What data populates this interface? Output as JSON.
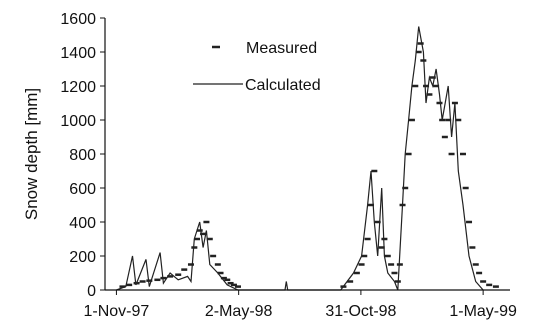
{
  "chart_data": {
    "type": "line",
    "title": "",
    "ylabel": "Snow depth [mm]",
    "xlabel": "",
    "x_range": [
      "1997-10-15",
      "1999-06-10"
    ],
    "ylim": [
      0,
      1600
    ],
    "y_ticks": [
      0,
      200,
      400,
      600,
      800,
      1000,
      1200,
      1400,
      1600
    ],
    "x_ticks": [
      {
        "date": "1997-11-01",
        "label": "1-Nov-97"
      },
      {
        "date": "1998-05-02",
        "label": "2-May-98"
      },
      {
        "date": "1998-10-31",
        "label": "31-Oct-98"
      },
      {
        "date": "1999-05-01",
        "label": "1-May-99"
      }
    ],
    "grid": false,
    "legend_position": "top-center",
    "series": [
      {
        "name": "Measured",
        "style": "markers",
        "color": "#222222",
        "points": [
          [
            "1997-11-10",
            20
          ],
          [
            "1997-11-20",
            30
          ],
          [
            "1997-12-01",
            40
          ],
          [
            "1997-12-10",
            50
          ],
          [
            "1997-12-20",
            55
          ],
          [
            "1998-01-01",
            60
          ],
          [
            "1998-01-10",
            70
          ],
          [
            "1998-01-20",
            80
          ],
          [
            "1998-02-01",
            90
          ],
          [
            "1998-02-10",
            120
          ],
          [
            "1998-02-20",
            150
          ],
          [
            "1998-02-25",
            250
          ],
          [
            "1998-03-01",
            300
          ],
          [
            "1998-03-05",
            350
          ],
          [
            "1998-03-10",
            330
          ],
          [
            "1998-03-15",
            400
          ],
          [
            "1998-03-20",
            300
          ],
          [
            "1998-03-25",
            200
          ],
          [
            "1998-04-01",
            150
          ],
          [
            "1998-04-05",
            100
          ],
          [
            "1998-04-10",
            70
          ],
          [
            "1998-04-15",
            60
          ],
          [
            "1998-04-20",
            40
          ],
          [
            "1998-04-25",
            30
          ],
          [
            "1998-05-01",
            20
          ],
          [
            "1998-10-05",
            20
          ],
          [
            "1998-10-15",
            50
          ],
          [
            "1998-10-25",
            100
          ],
          [
            "1998-11-01",
            150
          ],
          [
            "1998-11-05",
            200
          ],
          [
            "1998-11-10",
            300
          ],
          [
            "1998-11-15",
            500
          ],
          [
            "1998-11-20",
            700
          ],
          [
            "1998-11-25",
            400
          ],
          [
            "1998-12-01",
            250
          ],
          [
            "1998-12-05",
            300
          ],
          [
            "1998-12-10",
            200
          ],
          [
            "1998-12-15",
            150
          ],
          [
            "1998-12-20",
            100
          ],
          [
            "1998-12-25",
            50
          ],
          [
            "1998-12-28",
            150
          ],
          [
            "1999-01-01",
            500
          ],
          [
            "1999-01-05",
            600
          ],
          [
            "1999-01-10",
            800
          ],
          [
            "1999-01-15",
            1000
          ],
          [
            "1999-01-20",
            1200
          ],
          [
            "1999-01-25",
            1400
          ],
          [
            "1999-01-28",
            1450
          ],
          [
            "1999-02-01",
            1350
          ],
          [
            "1999-02-05",
            1200
          ],
          [
            "1999-02-10",
            1150
          ],
          [
            "1999-02-15",
            1250
          ],
          [
            "1999-02-20",
            1200
          ],
          [
            "1999-02-25",
            1100
          ],
          [
            "1999-03-01",
            1000
          ],
          [
            "1999-03-05",
            900
          ],
          [
            "1999-03-10",
            1000
          ],
          [
            "1999-03-15",
            800
          ],
          [
            "1999-03-20",
            1100
          ],
          [
            "1999-03-25",
            1000
          ],
          [
            "1999-04-01",
            800
          ],
          [
            "1999-04-05",
            600
          ],
          [
            "1999-04-10",
            400
          ],
          [
            "1999-04-15",
            250
          ],
          [
            "1999-04-20",
            150
          ],
          [
            "1999-04-25",
            100
          ],
          [
            "1999-05-01",
            50
          ],
          [
            "1999-05-10",
            30
          ],
          [
            "1999-05-20",
            20
          ]
        ]
      },
      {
        "name": "Calculated",
        "style": "line",
        "color": "#222222",
        "points": [
          [
            "1997-11-01",
            0
          ],
          [
            "1997-11-15",
            20
          ],
          [
            "1997-11-25",
            200
          ],
          [
            "1997-11-30",
            30
          ],
          [
            "1997-12-15",
            180
          ],
          [
            "1997-12-20",
            20
          ],
          [
            "1998-01-05",
            220
          ],
          [
            "1998-01-10",
            40
          ],
          [
            "1998-01-20",
            100
          ],
          [
            "1998-02-01",
            60
          ],
          [
            "1998-02-15",
            80
          ],
          [
            "1998-02-20",
            50
          ],
          [
            "1998-02-25",
            300
          ],
          [
            "1998-03-05",
            400
          ],
          [
            "1998-03-10",
            250
          ],
          [
            "1998-03-15",
            350
          ],
          [
            "1998-03-20",
            150
          ],
          [
            "1998-04-01",
            100
          ],
          [
            "1998-04-15",
            30
          ],
          [
            "1998-05-01",
            0
          ],
          [
            "1998-07-10",
            0
          ],
          [
            "1998-07-12",
            50
          ],
          [
            "1998-07-14",
            0
          ],
          [
            "1998-10-01",
            0
          ],
          [
            "1998-10-20",
            100
          ],
          [
            "1998-11-01",
            200
          ],
          [
            "1998-11-10",
            500
          ],
          [
            "1998-11-15",
            700
          ],
          [
            "1998-11-20",
            400
          ],
          [
            "1998-11-25",
            200
          ],
          [
            "1998-12-01",
            600
          ],
          [
            "1998-12-05",
            200
          ],
          [
            "1998-12-10",
            100
          ],
          [
            "1998-12-20",
            50
          ],
          [
            "1998-12-25",
            0
          ],
          [
            "1999-01-01",
            500
          ],
          [
            "1999-01-05",
            800
          ],
          [
            "1999-01-10",
            1000
          ],
          [
            "1999-01-15",
            1200
          ],
          [
            "1999-01-20",
            1350
          ],
          [
            "1999-01-25",
            1550
          ],
          [
            "1999-02-01",
            1400
          ],
          [
            "1999-02-05",
            1100
          ],
          [
            "1999-02-10",
            1250
          ],
          [
            "1999-02-15",
            1200
          ],
          [
            "1999-02-20",
            1300
          ],
          [
            "1999-02-25",
            1150
          ],
          [
            "1999-03-01",
            1000
          ],
          [
            "1999-03-10",
            1200
          ],
          [
            "1999-03-15",
            900
          ],
          [
            "1999-03-20",
            1100
          ],
          [
            "1999-03-25",
            700
          ],
          [
            "1999-04-01",
            500
          ],
          [
            "1999-04-10",
            200
          ],
          [
            "1999-04-20",
            50
          ],
          [
            "1999-05-01",
            0
          ]
        ]
      }
    ]
  }
}
